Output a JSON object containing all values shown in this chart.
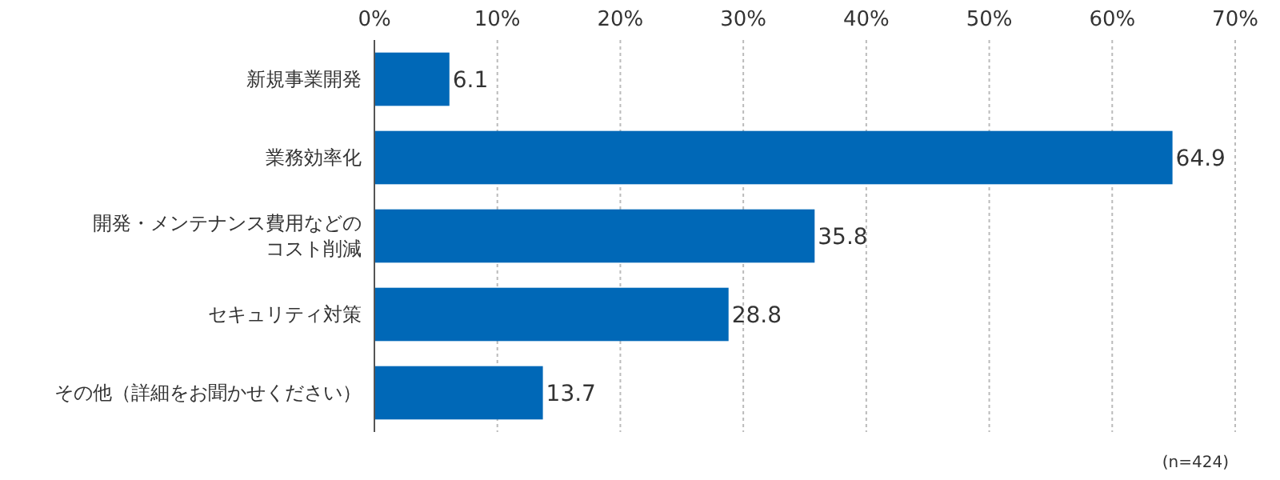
{
  "chart_data": {
    "type": "bar",
    "orientation": "horizontal",
    "categories": [
      "新規事業開発",
      "業務効率化",
      "開発・メンテナンス費用などのコスト削減",
      "セキュリティ対策",
      "その他（詳細をお聞かせください）"
    ],
    "values": [
      6.1,
      64.9,
      35.8,
      28.8,
      13.7
    ],
    "color": "#0068b7",
    "xlim": [
      0,
      70
    ],
    "xticks": [
      {
        "value": 0,
        "label": "0%"
      },
      {
        "value": 10,
        "label": "10%"
      },
      {
        "value": 20,
        "label": "20%"
      },
      {
        "value": 30,
        "label": "30%"
      },
      {
        "value": 40,
        "label": "40%"
      },
      {
        "value": 50,
        "label": "50%"
      },
      {
        "value": 60,
        "label": "60%"
      },
      {
        "value": 70,
        "label": "70%"
      }
    ],
    "grid": "x",
    "data_labels": true,
    "annotations": [
      "(n=424)"
    ]
  }
}
